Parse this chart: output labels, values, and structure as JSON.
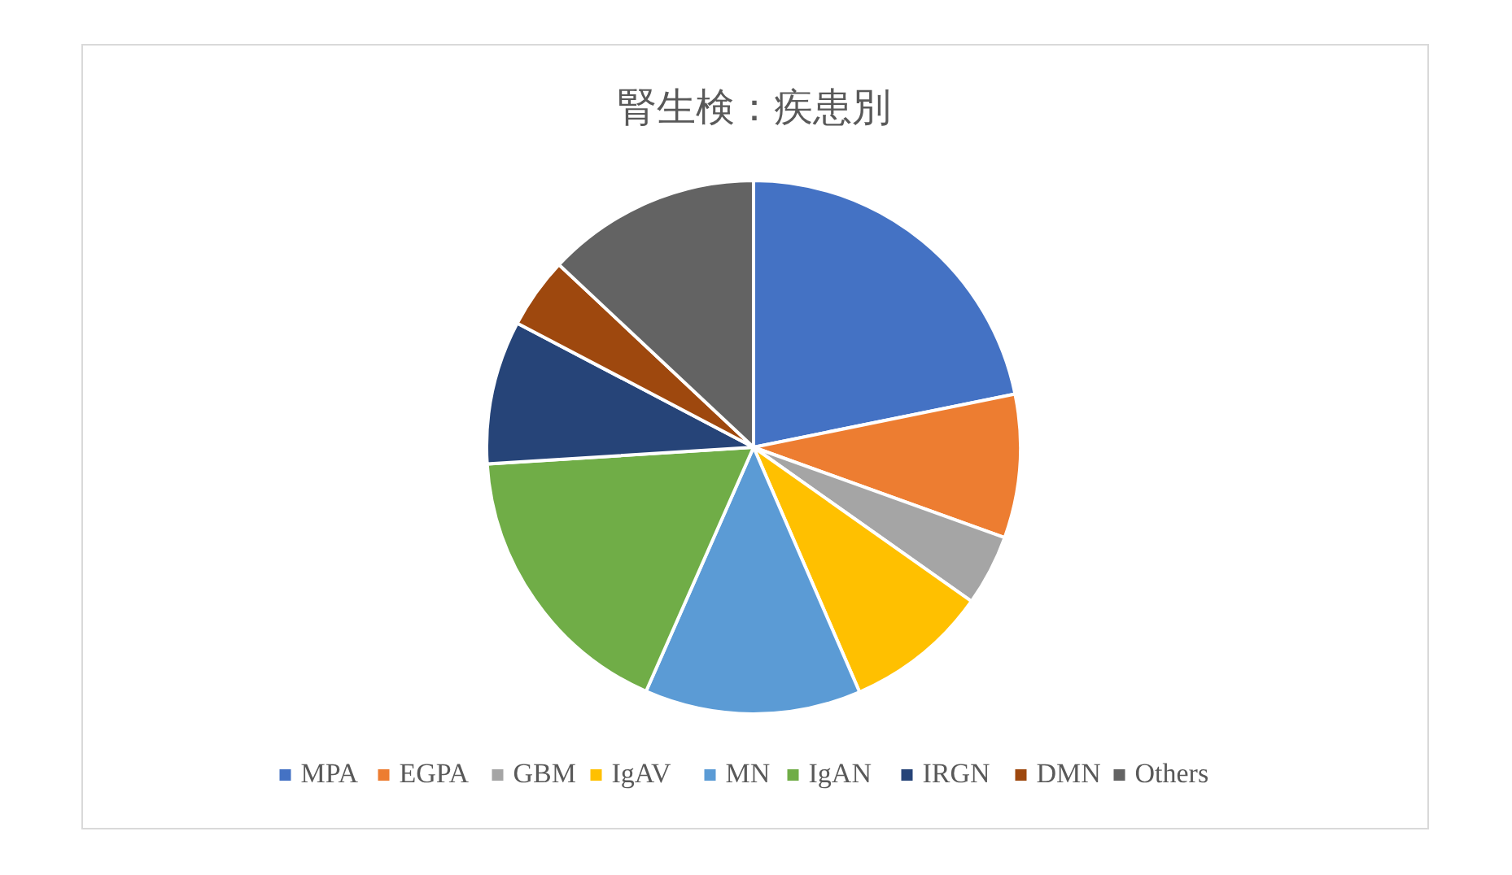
{
  "chart_data": {
    "type": "pie",
    "title": "腎生検：疾患別",
    "categories": [
      "MPA",
      "EGPA",
      "GBM",
      "IgAV",
      "MN",
      "IgAN",
      "IRGN",
      "DMN",
      "Others"
    ],
    "values": [
      21.8,
      8.7,
      4.3,
      8.7,
      13.1,
      17.4,
      8.7,
      4.3,
      13.0
    ],
    "colors": [
      "#4472c4",
      "#ed7d31",
      "#a5a5a5",
      "#ffc000",
      "#5b9bd5",
      "#70ad47",
      "#264478",
      "#9e480e",
      "#636363"
    ],
    "legend": "bottom"
  }
}
